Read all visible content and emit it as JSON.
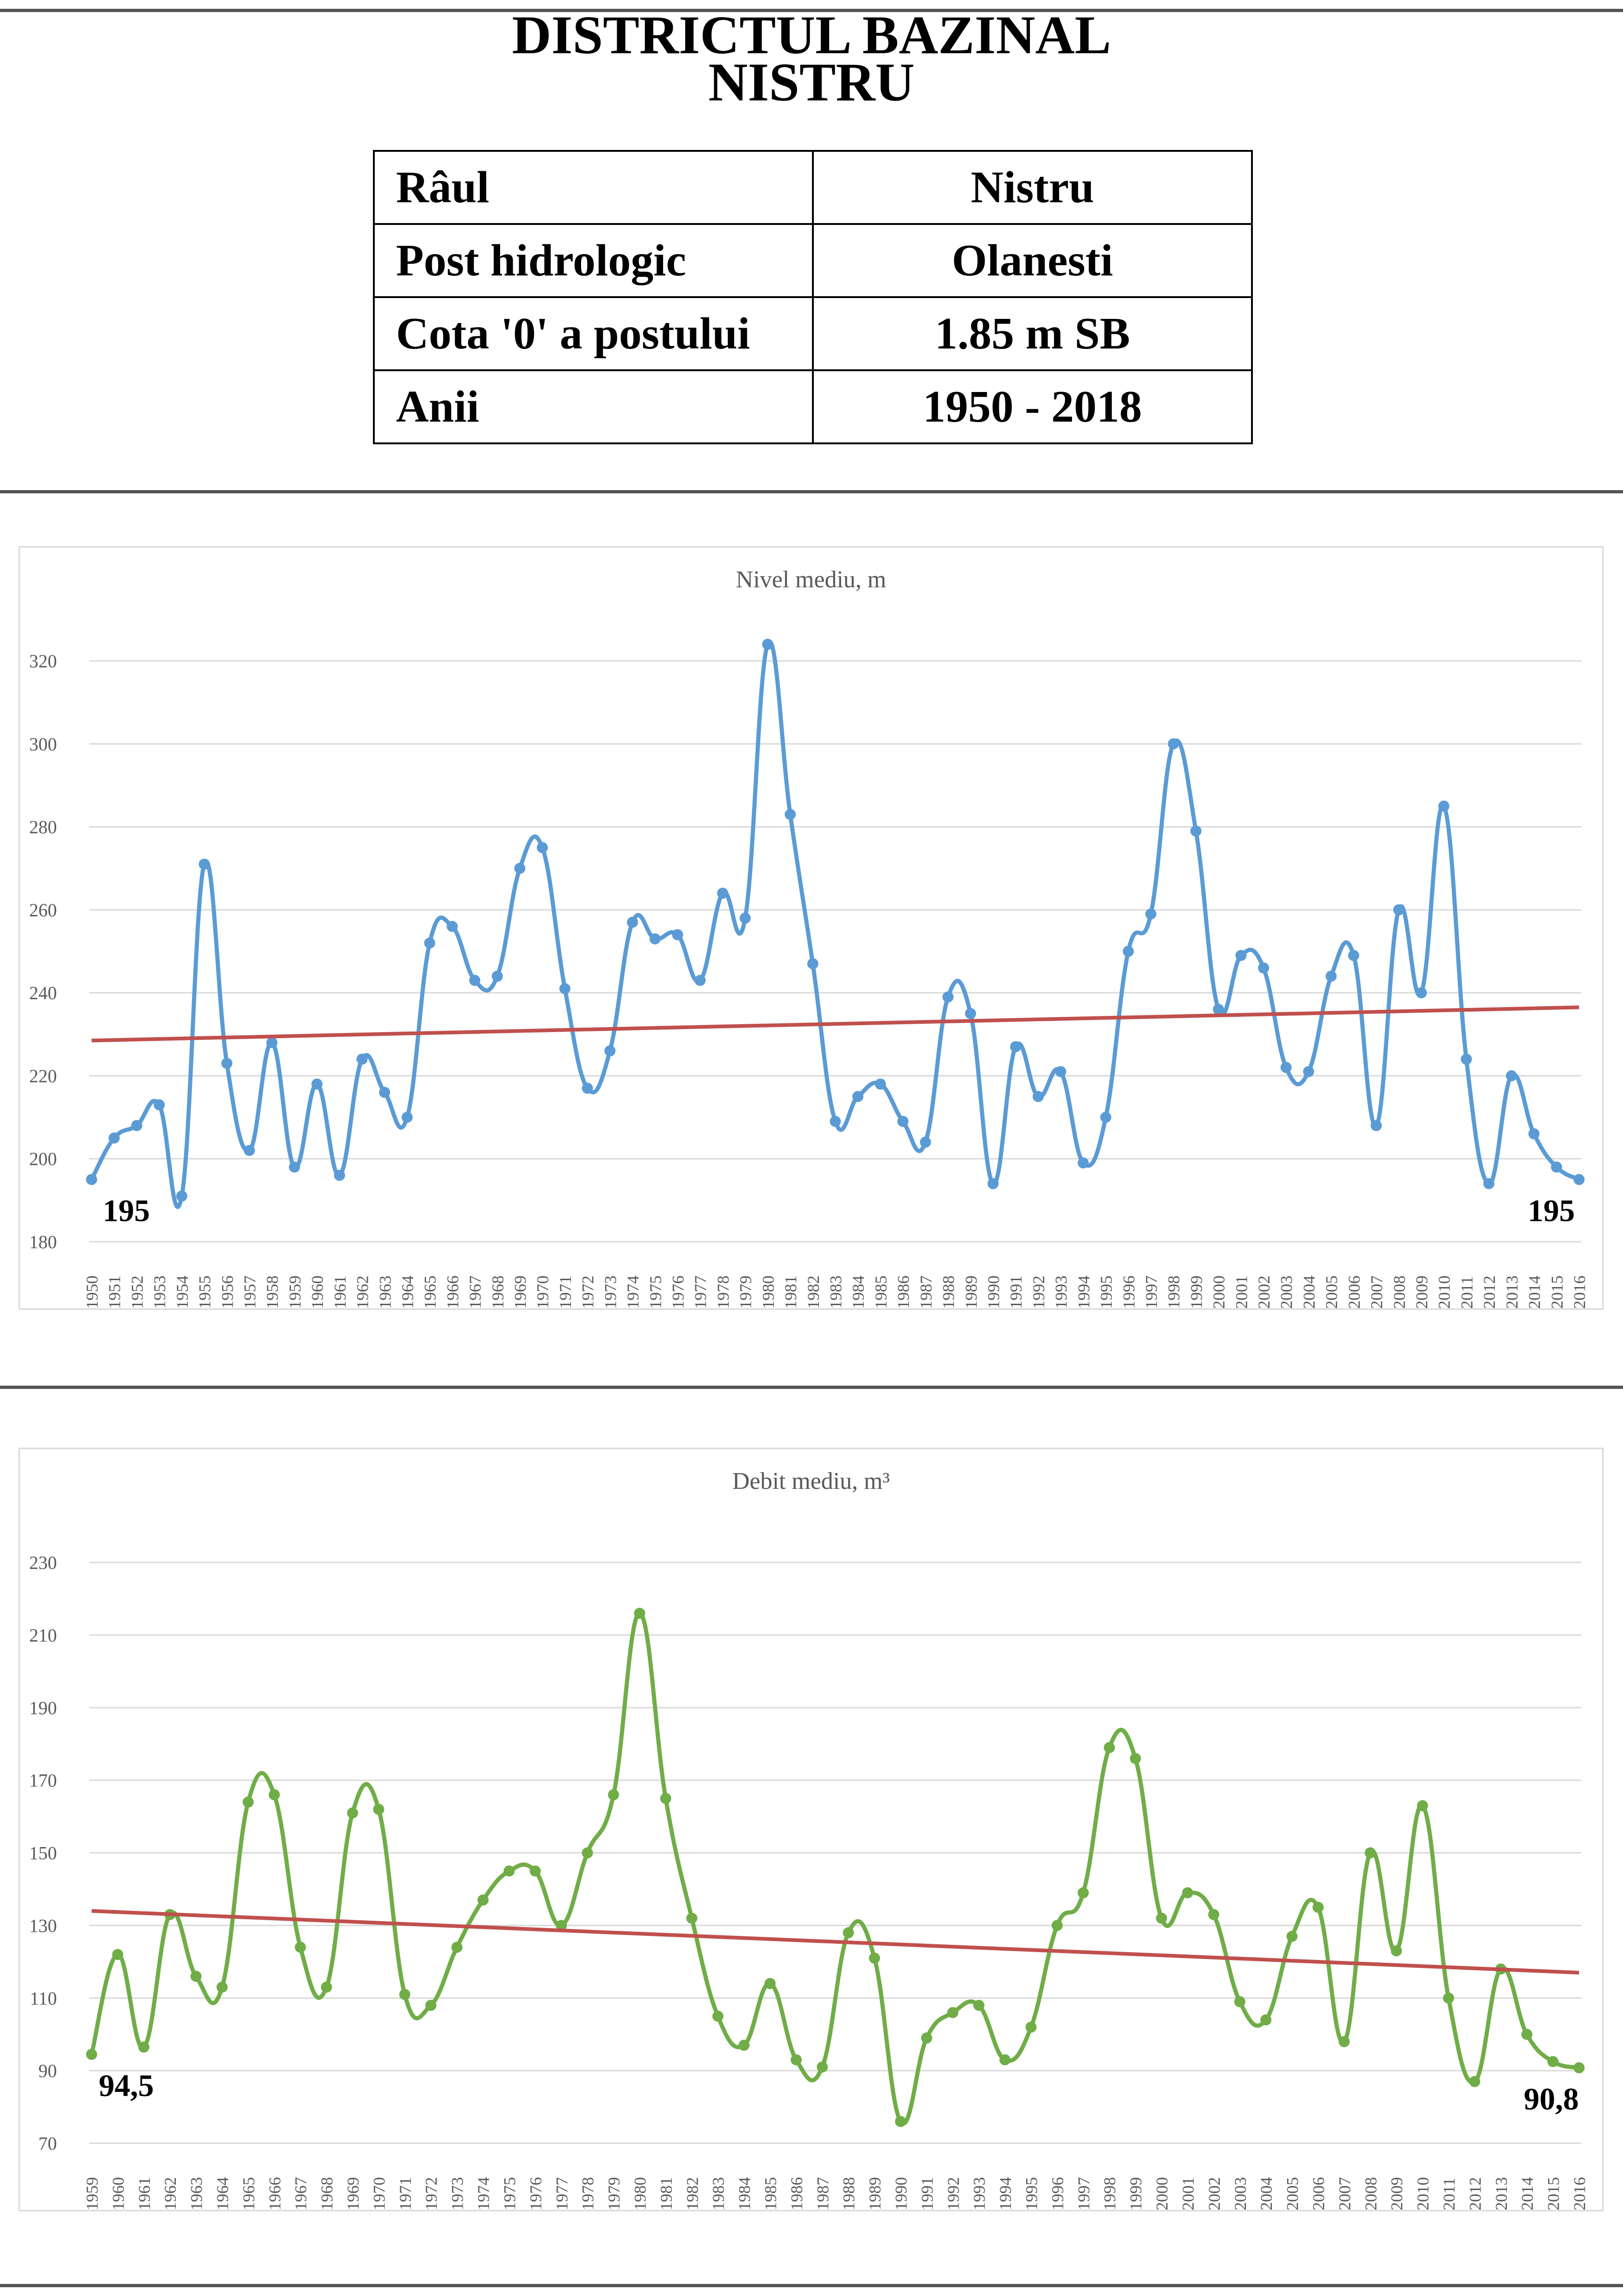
{
  "title_lines": [
    "DISTRICTUL BAZINAL",
    "NISTRU"
  ],
  "info_table": [
    {
      "label": "Râul",
      "value": "Nistru"
    },
    {
      "label": "Post hidrologic",
      "value": "Olanesti"
    },
    {
      "label": "Cota '0' a postului",
      "value": "1.85 m SB"
    },
    {
      "label": "Anii",
      "value": "1950 - 2018"
    }
  ],
  "chart_data": [
    {
      "type": "line",
      "title": "Nivel mediu, m",
      "xlabel": "",
      "ylabel": "",
      "ylim": [
        180,
        320
      ],
      "yticks": [
        180,
        200,
        220,
        240,
        260,
        280,
        300,
        320
      ],
      "grid": true,
      "smooth": true,
      "colors": {
        "series": "#5B9BD5",
        "trend": "#C0504D"
      },
      "x": [
        "1950",
        "1951",
        "1952",
        "1953",
        "1954",
        "1955",
        "1956",
        "1957",
        "1958",
        "1959",
        "1960",
        "1961",
        "1962",
        "1963",
        "1964",
        "1965",
        "1966",
        "1967",
        "1968",
        "1969",
        "1970",
        "1971",
        "1972",
        "1973",
        "1974",
        "1975",
        "1976",
        "1977",
        "1978",
        "1979",
        "1980",
        "1981",
        "1982",
        "1983",
        "1984",
        "1985",
        "1986",
        "1987",
        "1988",
        "1989",
        "1990",
        "1991",
        "1992",
        "1993",
        "1994",
        "1995",
        "1996",
        "1997",
        "1998",
        "1999",
        "2000",
        "2001",
        "2002",
        "2003",
        "2004",
        "2005",
        "2006",
        "2007",
        "2008",
        "2009",
        "2010",
        "2011",
        "2012",
        "2013",
        "2014",
        "2015",
        "2016"
      ],
      "series": [
        {
          "name": "",
          "values": [
            195,
            205,
            208,
            213,
            191,
            271,
            223,
            202,
            228,
            198,
            218,
            196,
            224,
            216,
            210,
            252,
            256,
            243,
            244,
            270,
            275,
            241,
            217,
            226,
            257,
            253,
            254,
            243,
            264,
            258,
            324,
            283,
            247,
            209,
            215,
            218,
            209,
            204,
            239,
            235,
            194,
            227,
            215,
            221,
            199,
            210,
            250,
            259,
            300,
            279,
            236,
            249,
            246,
            222,
            221,
            244,
            249,
            208,
            260,
            240,
            285,
            224,
            194,
            220,
            206,
            198,
            195
          ]
        }
      ],
      "trend": {
        "start": 228.5,
        "end": 236.5
      },
      "annotations": [
        {
          "text": "195",
          "at": "first"
        },
        {
          "text": "195",
          "at": "last"
        }
      ]
    },
    {
      "type": "line",
      "title": "Debit mediu, m³",
      "xlabel": "",
      "ylabel": "",
      "ylim": [
        70,
        230
      ],
      "yticks": [
        70,
        90,
        110,
        130,
        150,
        170,
        190,
        210,
        230
      ],
      "grid": true,
      "smooth": true,
      "colors": {
        "series": "#70AD47",
        "trend": "#C0504D"
      },
      "x": [
        "1959",
        "1960",
        "1961",
        "1962",
        "1963",
        "1964",
        "1965",
        "1966",
        "1967",
        "1968",
        "1969",
        "1970",
        "1971",
        "1972",
        "1973",
        "1974",
        "1975",
        "1976",
        "1977",
        "1978",
        "1979",
        "1980",
        "1981",
        "1982",
        "1983",
        "1984",
        "1985",
        "1986",
        "1987",
        "1988",
        "1989",
        "1990",
        "1991",
        "1992",
        "1993",
        "1994",
        "1995",
        "1996",
        "1997",
        "1998",
        "1999",
        "2000",
        "2001",
        "2002",
        "2003",
        "2004",
        "2005",
        "2006",
        "2007",
        "2008",
        "2009",
        "2010",
        "2011",
        "2012",
        "2013",
        "2014",
        "2015",
        "2016"
      ],
      "series": [
        {
          "name": "",
          "values": [
            94.5,
            122,
            96.5,
            133,
            116,
            113,
            164,
            166,
            124,
            113,
            161,
            162,
            111,
            108,
            124,
            137,
            145,
            145,
            130,
            150,
            166,
            216,
            165,
            132,
            105,
            97,
            114,
            93,
            91,
            128,
            121,
            76,
            99,
            106,
            108,
            93,
            102,
            130,
            139,
            179,
            176,
            132,
            139,
            133,
            109,
            104,
            127,
            135,
            98,
            150,
            123,
            163,
            110,
            87,
            118,
            100,
            92.5,
            90.8
          ]
        }
      ],
      "trend": {
        "start": 134,
        "end": 117
      },
      "annotations": [
        {
          "text": "94,5",
          "at": "first"
        },
        {
          "text": "90,8",
          "at": "last"
        }
      ]
    }
  ]
}
